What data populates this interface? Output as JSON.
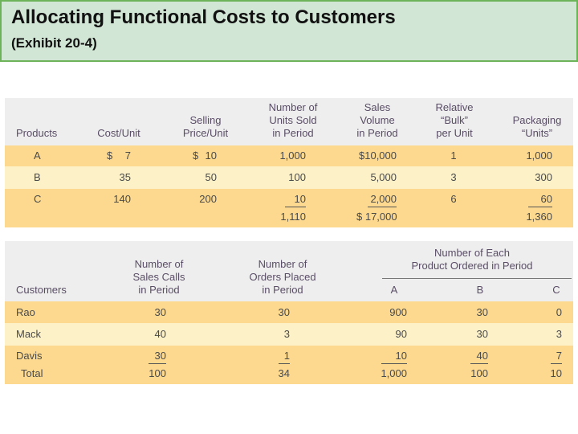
{
  "header": {
    "title": "Allocating Functional Costs to Customers",
    "subtitle": "(Exhibit 20-4)"
  },
  "table1": {
    "headers": [
      [
        "Products"
      ],
      [
        "Cost/Unit"
      ],
      [
        "Selling",
        "Price/Unit"
      ],
      [
        "Number of",
        "Units Sold",
        "in Period"
      ],
      [
        "Sales",
        "Volume",
        "in Period"
      ],
      [
        "Relative",
        "“Bulk”",
        "per Unit"
      ],
      [
        "Packaging",
        "“Units”"
      ]
    ],
    "rows": [
      [
        "A",
        "$ 7",
        "$ 10",
        "1,000",
        "$10,000",
        "1",
        "1,000"
      ],
      [
        "B",
        "35",
        "50",
        "100",
        "5,000",
        "3",
        "300"
      ],
      [
        "C",
        "140",
        "200",
        "10",
        "2,000",
        "6",
        "60"
      ]
    ],
    "totals": {
      "units": "1,110",
      "sales": "$ 17,000",
      "packaging": "1,360"
    }
  },
  "table2": {
    "group_header": [
      "Number of Each",
      "Product Ordered in Period"
    ],
    "headers": [
      [
        "Customers"
      ],
      [
        "Number of",
        "Sales Calls",
        "in Period"
      ],
      [
        "Number of",
        "Orders Placed",
        "in Period"
      ],
      [
        "A"
      ],
      [
        "B"
      ],
      [
        "C"
      ]
    ],
    "rows": [
      [
        "Rao",
        "30",
        "30",
        "900",
        "30",
        "0"
      ],
      [
        "Mack",
        "40",
        "3",
        "90",
        "30",
        "3"
      ],
      [
        "Davis",
        "30",
        "1",
        "10",
        "40",
        "7"
      ]
    ],
    "totals": [
      "Total",
      "100",
      "34",
      "1,000",
      "100",
      "10"
    ]
  }
}
